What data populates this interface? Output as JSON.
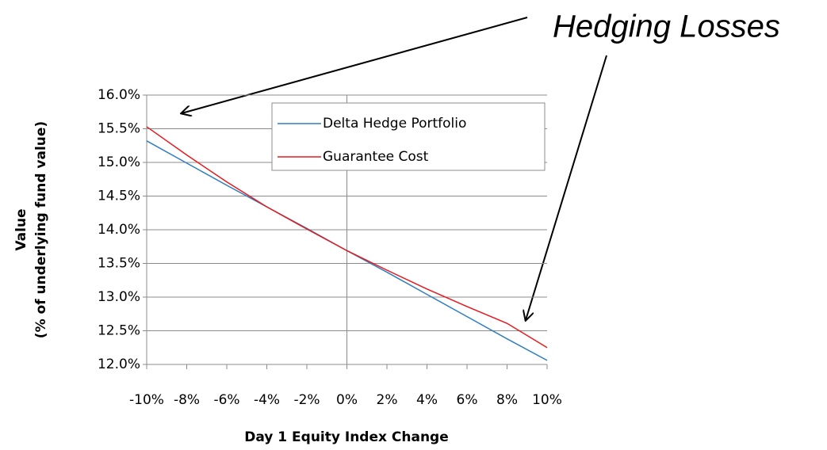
{
  "chart_data": {
    "type": "line",
    "annotations": [
      "Hedging Losses"
    ],
    "xlabel": "Day 1 Equity Index Change",
    "ylabel": [
      "Value",
      "(% of underlying fund value)"
    ],
    "x": [
      -10,
      -8,
      -6,
      -4,
      -2,
      0,
      2,
      4,
      6,
      8,
      10
    ],
    "series": [
      {
        "name": "Delta Hedge Portfolio",
        "color": "#2e7dc0",
        "values": [
          15.32,
          14.99,
          14.66,
          14.34,
          14.02,
          13.69,
          13.37,
          13.04,
          12.71,
          12.38,
          12.06
        ]
      },
      {
        "name": "Guarantee Cost",
        "color": "#e8191c",
        "values": [
          15.53,
          15.11,
          14.71,
          14.34,
          14.01,
          13.69,
          13.4,
          13.12,
          12.86,
          12.61,
          12.25
        ]
      }
    ],
    "xlim": [
      -10,
      10
    ],
    "xticks": [
      {
        "value": -10,
        "label": "-10%"
      },
      {
        "value": -8,
        "label": "-8%"
      },
      {
        "value": -6,
        "label": "-6%"
      },
      {
        "value": -4,
        "label": "-4%"
      },
      {
        "value": -2,
        "label": "-2%"
      },
      {
        "value": 0,
        "label": "0%"
      },
      {
        "value": 2,
        "label": "2%"
      },
      {
        "value": 4,
        "label": "4%"
      },
      {
        "value": 6,
        "label": "6%"
      },
      {
        "value": 8,
        "label": "8%"
      },
      {
        "value": 10,
        "label": "10%"
      }
    ],
    "ylim": [
      12,
      16
    ],
    "yticks": [
      {
        "value": 12,
        "label": "12.0%"
      },
      {
        "value": 12.5,
        "label": "12.5%"
      },
      {
        "value": 13,
        "label": "13.0%"
      },
      {
        "value": 13.5,
        "label": "13.5%"
      },
      {
        "value": 14,
        "label": "14.0%"
      },
      {
        "value": 14.5,
        "label": "14.5%"
      },
      {
        "value": 15,
        "label": "15.0%"
      },
      {
        "value": 15.5,
        "label": "15.5%"
      },
      {
        "value": 16,
        "label": "16.0%"
      }
    ],
    "grid": true,
    "legend": "upper right"
  }
}
